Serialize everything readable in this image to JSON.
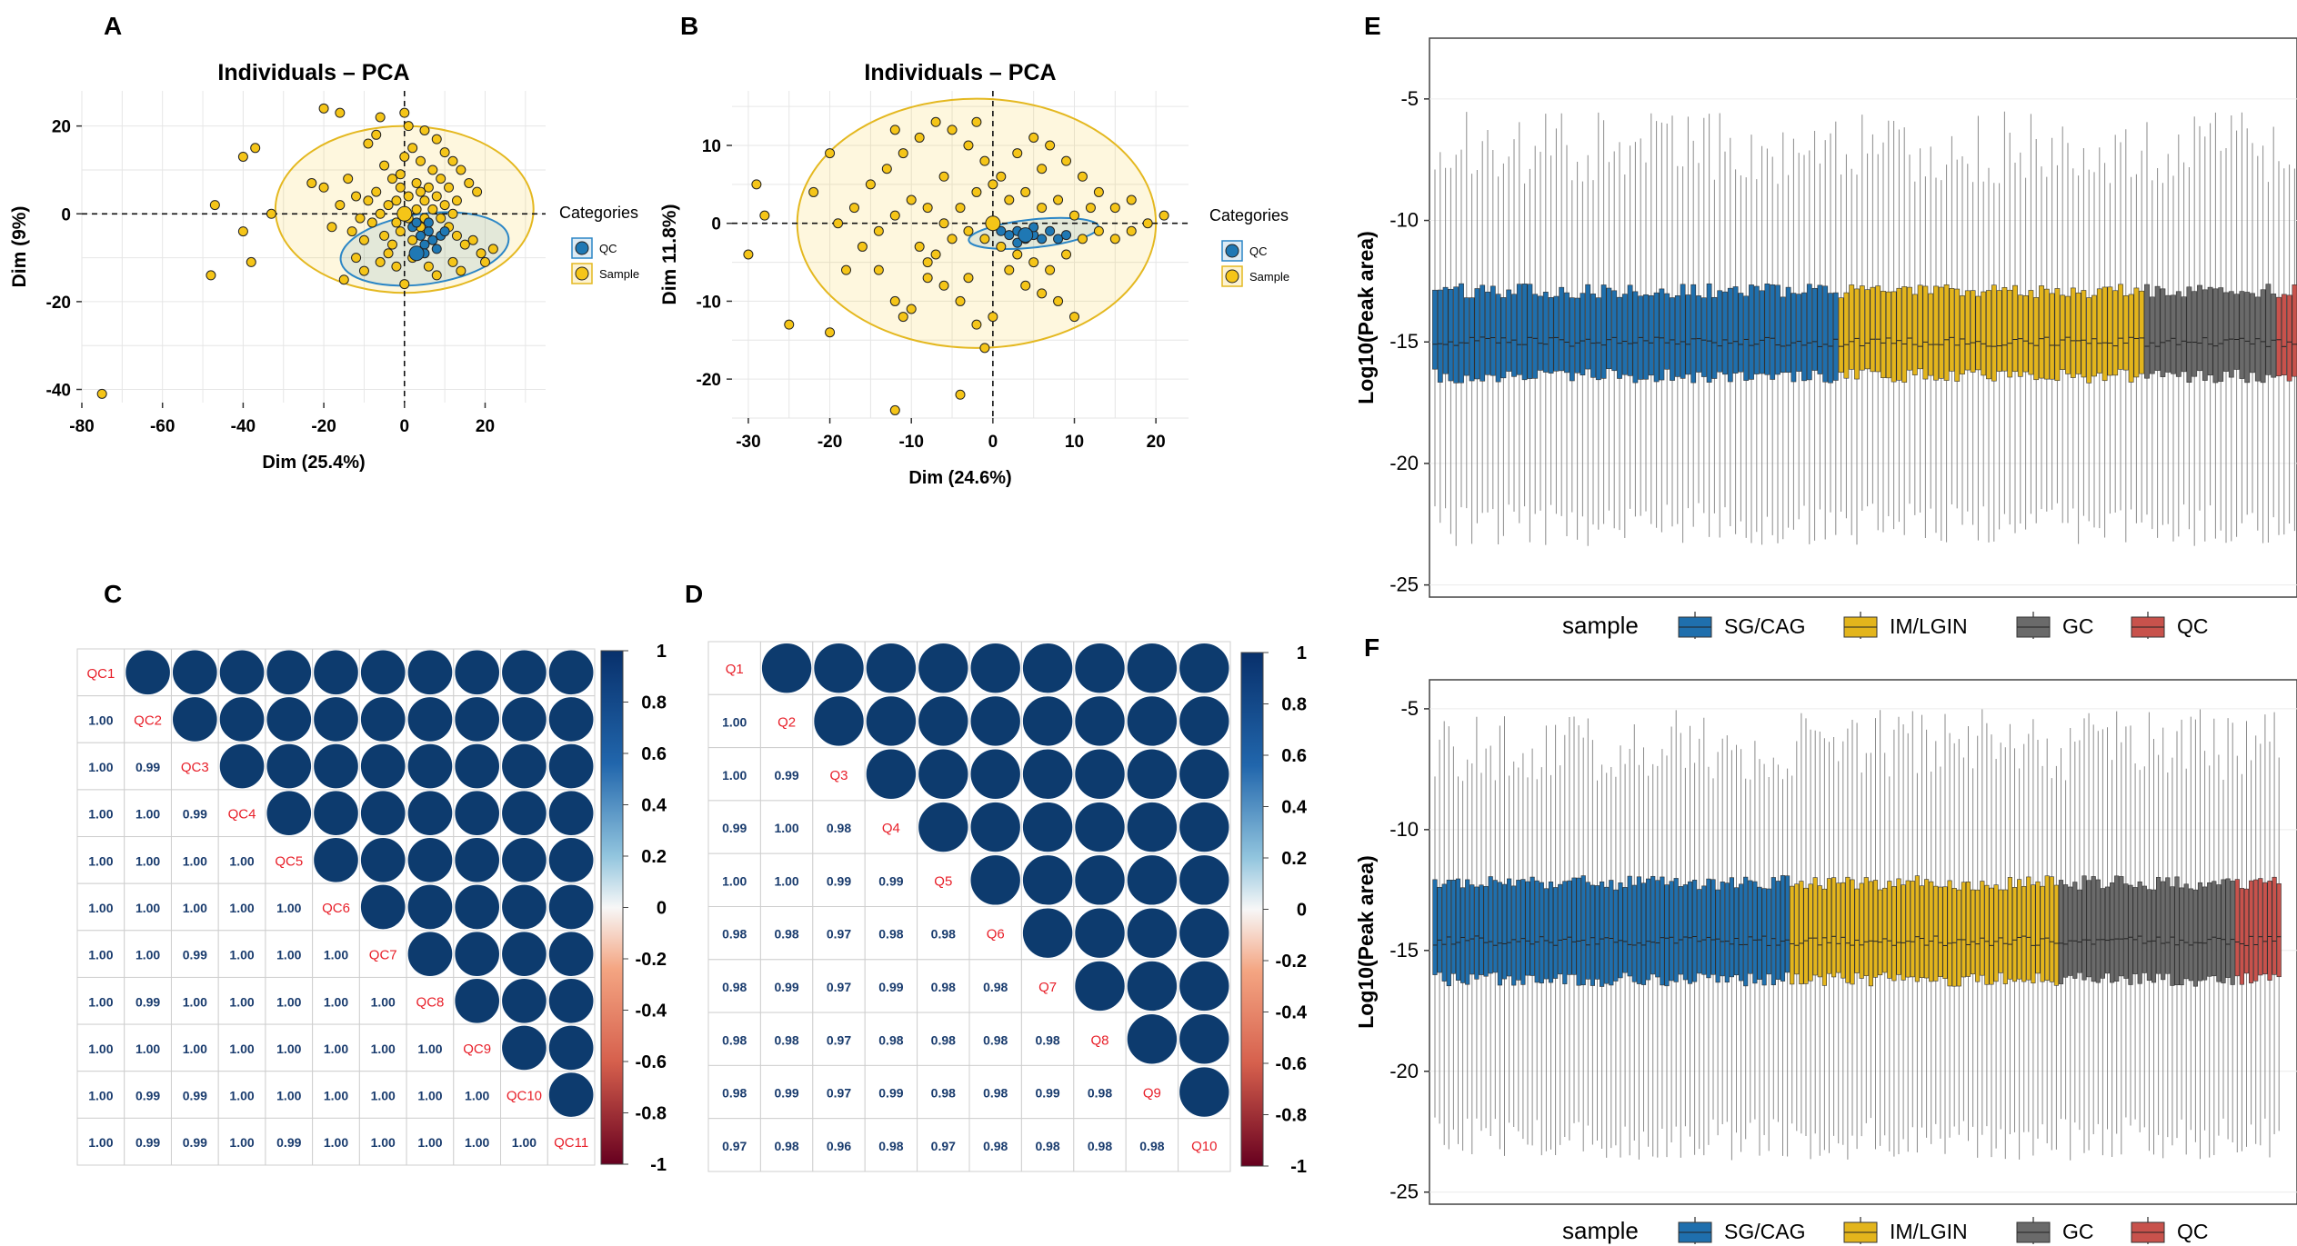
{
  "panel_letters": [
    "A",
    "B",
    "C",
    "D",
    "E",
    "F"
  ],
  "colors": {
    "qc_point": "#1f78b4",
    "sample_point": "#f5c518",
    "sg_cag": "#1f6fad",
    "im_lgin": "#e3b51c",
    "gc": "#6a6a6a",
    "qc_box": "#c8524c",
    "corr_pos": "#0d3b6e",
    "corr_neg": "#8b0a26",
    "diag_text": "#e8202a",
    "value_text": "#1a3c6e"
  },
  "chart_data": [
    {
      "id": "A",
      "type": "scatter",
      "title": "Individuals – PCA",
      "xlabel": "Dim (25.4%)",
      "ylabel": "Dim (9%)",
      "xlim": [
        -80,
        35
      ],
      "ylim": [
        -43,
        28
      ],
      "xticks": [
        -80,
        -60,
        -40,
        -20,
        0,
        20
      ],
      "yticks": [
        20,
        0,
        -20,
        -40
      ],
      "legend_title": "Categories",
      "legend": [
        "QC",
        "Sample"
      ],
      "legend_position": "right",
      "grid": true,
      "series": [
        {
          "name": "QC",
          "points": [
            [
              2,
              -3
            ],
            [
              4,
              -5
            ],
            [
              5,
              -7
            ],
            [
              6,
              -4
            ],
            [
              7,
              -6
            ],
            [
              8,
              -8
            ],
            [
              3,
              -2
            ],
            [
              9,
              -5
            ],
            [
              10,
              -4
            ],
            [
              5,
              -9
            ],
            [
              6,
              -2
            ]
          ],
          "centroid": [
            3,
            -9
          ]
        },
        {
          "name": "Sample",
          "points": [
            [
              -75,
              -41
            ],
            [
              -48,
              -14
            ],
            [
              -47,
              2
            ],
            [
              -40,
              -4
            ],
            [
              -38,
              -11
            ],
            [
              -37,
              15
            ],
            [
              -33,
              0
            ],
            [
              -40,
              13
            ],
            [
              -20,
              24
            ],
            [
              -16,
              23
            ],
            [
              -6,
              22
            ],
            [
              0,
              23
            ],
            [
              1,
              20
            ],
            [
              -15,
              -15
            ],
            [
              -18,
              -3
            ],
            [
              -20,
              6
            ],
            [
              -23,
              7
            ],
            [
              -10,
              -13
            ],
            [
              -12,
              -10
            ],
            [
              -9,
              16
            ],
            [
              -7,
              18
            ],
            [
              -5,
              11
            ],
            [
              -3,
              8
            ],
            [
              -1,
              9
            ],
            [
              0,
              13
            ],
            [
              2,
              15
            ],
            [
              4,
              12
            ],
            [
              5,
              19
            ],
            [
              7,
              10
            ],
            [
              8,
              17
            ],
            [
              10,
              14
            ],
            [
              12,
              12
            ],
            [
              14,
              10
            ],
            [
              16,
              7
            ],
            [
              18,
              5
            ],
            [
              -2,
              3
            ],
            [
              -4,
              2
            ],
            [
              -6,
              0
            ],
            [
              -8,
              -2
            ],
            [
              -5,
              -5
            ],
            [
              -3,
              -7
            ],
            [
              -1,
              -4
            ],
            [
              1,
              -1
            ],
            [
              3,
              1
            ],
            [
              5,
              3
            ],
            [
              7,
              1
            ],
            [
              9,
              -1
            ],
            [
              11,
              -3
            ],
            [
              13,
              -5
            ],
            [
              15,
              -7
            ],
            [
              17,
              -6
            ],
            [
              19,
              -9
            ],
            [
              20,
              -11
            ],
            [
              22,
              -8
            ],
            [
              -12,
              4
            ],
            [
              -14,
              8
            ],
            [
              -16,
              2
            ],
            [
              -10,
              -6
            ],
            [
              -2,
              -12
            ],
            [
              0,
              -16
            ],
            [
              2,
              -10
            ],
            [
              6,
              -12
            ],
            [
              8,
              -14
            ],
            [
              12,
              -11
            ],
            [
              14,
              -13
            ],
            [
              4,
              5
            ],
            [
              6,
              6
            ],
            [
              -1,
              6
            ],
            [
              1,
              4
            ],
            [
              3,
              7
            ],
            [
              8,
              4
            ],
            [
              10,
              2
            ],
            [
              12,
              0
            ],
            [
              -7,
              5
            ],
            [
              -9,
              3
            ],
            [
              -11,
              -1
            ],
            [
              -13,
              -4
            ],
            [
              2,
              -6
            ],
            [
              4,
              -3
            ],
            [
              -4,
              -9
            ],
            [
              -6,
              -11
            ],
            [
              9,
              8
            ],
            [
              11,
              6
            ],
            [
              13,
              3
            ],
            [
              0,
              0
            ],
            [
              -2,
              -2
            ],
            [
              5,
              -1
            ]
          ],
          "centroid": [
            0,
            0
          ]
        }
      ],
      "ellipses": [
        {
          "name": "Sample",
          "center": [
            0,
            1
          ],
          "rx": 32,
          "ry": 19
        },
        {
          "name": "QC",
          "center": [
            5,
            -8
          ],
          "rx": 21,
          "ry": 8,
          "rotation": -8
        }
      ]
    },
    {
      "id": "B",
      "type": "scatter",
      "title": "Individuals – PCA",
      "xlabel": "Dim (24.6%)",
      "ylabel": "Dim 11.8%)",
      "xlim": [
        -32,
        24
      ],
      "ylim": [
        -25,
        17
      ],
      "xticks": [
        -30,
        -20,
        -10,
        0,
        10,
        20
      ],
      "yticks": [
        10,
        0,
        -10,
        -20
      ],
      "legend_title": "Categories",
      "legend": [
        "QC",
        "Sample"
      ],
      "legend_position": "right",
      "grid": true,
      "series": [
        {
          "name": "QC",
          "points": [
            [
              1,
              -1
            ],
            [
              2,
              -1.5
            ],
            [
              3,
              -1
            ],
            [
              4,
              -2
            ],
            [
              5,
              -1.5
            ],
            [
              6,
              -2
            ],
            [
              7,
              -1
            ],
            [
              8,
              -2
            ],
            [
              3,
              -2.5
            ],
            [
              5,
              -0.5
            ],
            [
              9,
              -1.5
            ]
          ],
          "centroid": [
            4,
            -1.5
          ]
        },
        {
          "name": "Sample",
          "points": [
            [
              -30,
              -4
            ],
            [
              -29,
              5
            ],
            [
              -28,
              1
            ],
            [
              -25,
              -13
            ],
            [
              -20,
              -14
            ],
            [
              -18,
              -6
            ],
            [
              -14,
              -6
            ],
            [
              -12,
              -10
            ],
            [
              -11,
              -12
            ],
            [
              -10,
              -11
            ],
            [
              -8,
              -5
            ],
            [
              -6,
              -8
            ],
            [
              -4,
              -10
            ],
            [
              -3,
              -7
            ],
            [
              -2,
              -13
            ],
            [
              -1,
              -16
            ],
            [
              0,
              -12
            ],
            [
              -4,
              -22
            ],
            [
              -12,
              -24
            ],
            [
              -5,
              -2
            ],
            [
              -3,
              -1
            ],
            [
              -1,
              -2
            ],
            [
              1,
              -3
            ],
            [
              3,
              -4
            ],
            [
              5,
              -5
            ],
            [
              7,
              -6
            ],
            [
              9,
              -4
            ],
            [
              11,
              -2
            ],
            [
              13,
              -1
            ],
            [
              15,
              -2
            ],
            [
              17,
              -1
            ],
            [
              19,
              0
            ],
            [
              21,
              1
            ],
            [
              -15,
              5
            ],
            [
              -13,
              7
            ],
            [
              -11,
              9
            ],
            [
              -9,
              11
            ],
            [
              -7,
              13
            ],
            [
              -5,
              12
            ],
            [
              -3,
              10
            ],
            [
              -1,
              8
            ],
            [
              1,
              6
            ],
            [
              3,
              9
            ],
            [
              5,
              11
            ],
            [
              7,
              10
            ],
            [
              9,
              8
            ],
            [
              11,
              6
            ],
            [
              13,
              4
            ],
            [
              15,
              2
            ],
            [
              17,
              3
            ],
            [
              -17,
              2
            ],
            [
              -19,
              0
            ],
            [
              -16,
              -3
            ],
            [
              -14,
              -1
            ],
            [
              -12,
              1
            ],
            [
              -10,
              3
            ],
            [
              -8,
              2
            ],
            [
              -6,
              0
            ],
            [
              -4,
              2
            ],
            [
              -2,
              4
            ],
            [
              0,
              5
            ],
            [
              2,
              3
            ],
            [
              4,
              4
            ],
            [
              6,
              2
            ],
            [
              8,
              3
            ],
            [
              10,
              1
            ],
            [
              12,
              2
            ],
            [
              -9,
              -3
            ],
            [
              -7,
              -4
            ],
            [
              2,
              -6
            ],
            [
              4,
              -8
            ],
            [
              6,
              -9
            ],
            [
              8,
              -10
            ],
            [
              10,
              -12
            ],
            [
              -20,
              9
            ],
            [
              -22,
              4
            ],
            [
              -6,
              6
            ],
            [
              6,
              7
            ],
            [
              -2,
              13
            ],
            [
              -12,
              12
            ],
            [
              -8,
              -7
            ]
          ],
          "centroid": [
            0,
            0
          ]
        }
      ],
      "ellipses": [
        {
          "name": "Sample",
          "center": [
            -2,
            0
          ],
          "rx": 22,
          "ry": 16
        },
        {
          "name": "QC",
          "center": [
            5,
            -1.3
          ],
          "rx": 8,
          "ry": 1.8,
          "rotation": -6
        }
      ]
    },
    {
      "id": "C",
      "type": "heatmap",
      "labels": [
        "QC1",
        "QC2",
        "QC3",
        "QC4",
        "QC5",
        "QC6",
        "QC7",
        "QC8",
        "QC9",
        "QC10",
        "QC11"
      ],
      "lower_triangle": [
        [],
        [
          "1.00"
        ],
        [
          "1.00",
          "0.99"
        ],
        [
          "1.00",
          "1.00",
          "0.99"
        ],
        [
          "1.00",
          "1.00",
          "1.00",
          "1.00"
        ],
        [
          "1.00",
          "1.00",
          "1.00",
          "1.00",
          "1.00"
        ],
        [
          "1.00",
          "1.00",
          "0.99",
          "1.00",
          "1.00",
          "1.00"
        ],
        [
          "1.00",
          "0.99",
          "1.00",
          "1.00",
          "1.00",
          "1.00",
          "1.00"
        ],
        [
          "1.00",
          "1.00",
          "1.00",
          "1.00",
          "1.00",
          "1.00",
          "1.00",
          "1.00"
        ],
        [
          "1.00",
          "0.99",
          "0.99",
          "1.00",
          "1.00",
          "1.00",
          "1.00",
          "1.00",
          "1.00"
        ],
        [
          "1.00",
          "0.99",
          "0.99",
          "1.00",
          "0.99",
          "1.00",
          "1.00",
          "1.00",
          "1.00",
          "1.00"
        ]
      ],
      "colorbar_ticks": [
        "1",
        "0.8",
        "0.6",
        "0.4",
        "0.2",
        "0",
        "-0.2",
        "-0.4",
        "-0.6",
        "-0.8",
        "-1"
      ]
    },
    {
      "id": "D",
      "type": "heatmap",
      "labels": [
        "Q1",
        "Q2",
        "Q3",
        "Q4",
        "Q5",
        "Q6",
        "Q7",
        "Q8",
        "Q9",
        "Q10"
      ],
      "lower_triangle": [
        [],
        [
          "1.00"
        ],
        [
          "1.00",
          "0.99"
        ],
        [
          "0.99",
          "1.00",
          "0.98"
        ],
        [
          "1.00",
          "1.00",
          "0.99",
          "0.99"
        ],
        [
          "0.98",
          "0.98",
          "0.97",
          "0.98",
          "0.98"
        ],
        [
          "0.98",
          "0.99",
          "0.97",
          "0.99",
          "0.98",
          "0.98"
        ],
        [
          "0.98",
          "0.98",
          "0.97",
          "0.98",
          "0.98",
          "0.98",
          "0.98"
        ],
        [
          "0.98",
          "0.99",
          "0.97",
          "0.99",
          "0.98",
          "0.98",
          "0.99",
          "0.98"
        ],
        [
          "0.97",
          "0.98",
          "0.96",
          "0.98",
          "0.97",
          "0.98",
          "0.98",
          "0.98",
          "0.98"
        ]
      ],
      "colorbar_ticks": [
        "1",
        "0.8",
        "0.6",
        "0.4",
        "0.2",
        "0",
        "-0.2",
        "-0.4",
        "-0.6",
        "-0.8",
        "-1"
      ]
    },
    {
      "id": "E",
      "type": "box",
      "ylabel": "Log10(Peak area)",
      "ylim": [
        -25.5,
        -2.5
      ],
      "yticks": [
        "-5",
        "-10",
        "-15",
        "-20",
        "-25"
      ],
      "legend_title": "sample",
      "legend": [
        "SG/CAG",
        "IM/LGIN",
        "GC",
        "QC"
      ],
      "legend_position": "bottom",
      "groups": [
        {
          "name": "SG/CAG",
          "count": 77
        },
        {
          "name": "IM/LGIN",
          "count": 58
        },
        {
          "name": "GC",
          "count": 25
        },
        {
          "name": "QC",
          "count": 10
        }
      ],
      "box_summary": {
        "median": -15,
        "q1": -16.4,
        "q3": -12.9,
        "whisker_low": -22.5,
        "whisker_high": -7
      }
    },
    {
      "id": "F",
      "type": "box",
      "ylabel": "Log10(Peak area)",
      "ylim": [
        -25.5,
        -3.8
      ],
      "yticks": [
        "-5",
        "-10",
        "-15",
        "-20",
        "-25"
      ],
      "legend_title": "sample",
      "legend": [
        "SG/CAG",
        "IM/LGIN",
        "GC",
        "QC"
      ],
      "legend_position": "bottom",
      "groups": [
        {
          "name": "SG/CAG",
          "count": 77
        },
        {
          "name": "IM/LGIN",
          "count": 58
        },
        {
          "name": "GC",
          "count": 38
        },
        {
          "name": "QC",
          "count": 10
        }
      ],
      "box_summary": {
        "median": -14.6,
        "q1": -16.2,
        "q3": -12.2,
        "whisker_low": -22.8,
        "whisker_high": -6.5
      }
    }
  ]
}
